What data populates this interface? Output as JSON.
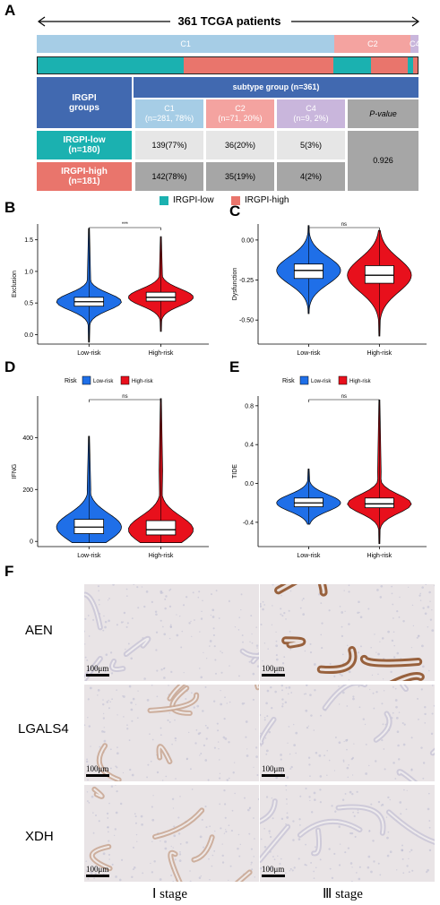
{
  "panel_labels": {
    "a": "A",
    "b": "B",
    "c": "C",
    "d": "D",
    "e": "E",
    "f": "F"
  },
  "panelA": {
    "cohort_label": "361 TCGA patients",
    "subtype_bar": [
      {
        "label": "C1",
        "fraction": 0.78,
        "color": "#a6cde6"
      },
      {
        "label": "C2",
        "fraction": 0.2,
        "color": "#f4a3a0"
      },
      {
        "label": "C4",
        "fraction": 0.02,
        "color": "#c9b6dc"
      }
    ],
    "risk_bar_segments": [
      {
        "group": "IRGPI-low",
        "fraction": 0.385,
        "color": "#1bb1b0"
      },
      {
        "group": "IRGPI-high",
        "fraction": 0.393,
        "color": "#e9756c"
      },
      {
        "group": "IRGPI-low",
        "fraction": 0.1,
        "color": "#1bb1b0"
      },
      {
        "group": "IRGPI-high",
        "fraction": 0.097,
        "color": "#e9756c"
      },
      {
        "group": "IRGPI-low",
        "fraction": 0.014,
        "color": "#1bb1b0"
      },
      {
        "group": "IRGPI-high",
        "fraction": 0.011,
        "color": "#e9756c"
      }
    ],
    "table": {
      "group_header": "IRGPI\ngroups",
      "subtype_header": "subtype group (n=361)",
      "col_headers": [
        "C1\n(n=281, 78%)",
        "C2\n(n=71, 20%)",
        "C4\n(n=9, 2%)",
        "P-value"
      ],
      "rows": [
        {
          "label": "IRGPI-low\n(n=180)",
          "cells": [
            "139(77%)",
            "36(20%)",
            "5(3%)"
          ]
        },
        {
          "label": "IRGPI-high\n(n=181)",
          "cells": [
            "142(78%)",
            "35(19%)",
            "4(2%)"
          ]
        }
      ],
      "p_value": "0.926"
    },
    "legend": [
      {
        "label": "IRGPI-low",
        "color": "#1bb1b0"
      },
      {
        "label": "IRGPI-high",
        "color": "#e9756c"
      }
    ]
  },
  "chart_data": [
    {
      "panel": "B",
      "type": "violin",
      "ylabel": "Exclusion",
      "categories": [
        "Low-risk",
        "High-risk"
      ],
      "ylim": [
        -0.15,
        1.75
      ],
      "yticks": [
        0.0,
        0.5,
        1.0,
        1.5
      ],
      "series": [
        {
          "category": "Low-risk",
          "color": "#1f6fe8",
          "min": -0.12,
          "q1": 0.45,
          "median": 0.52,
          "q3": 0.59,
          "max": 1.68
        },
        {
          "category": "High-risk",
          "color": "#e8101c",
          "min": 0.05,
          "q1": 0.53,
          "median": 0.59,
          "q3": 0.67,
          "max": 1.55
        }
      ],
      "significance": "***"
    },
    {
      "panel": "C",
      "type": "violin",
      "ylabel": "Dysfunction",
      "categories": [
        "Low-risk",
        "High-risk"
      ],
      "ylim": [
        -0.65,
        0.1
      ],
      "yticks": [
        0.0,
        -0.25,
        -0.5
      ],
      "series": [
        {
          "category": "Low-risk",
          "color": "#1f6fe8",
          "min": -0.46,
          "q1": -0.24,
          "median": -0.19,
          "q3": -0.15,
          "max": 0.09
        },
        {
          "category": "High-risk",
          "color": "#e8101c",
          "min": -0.6,
          "q1": -0.27,
          "median": -0.22,
          "q3": -0.16,
          "max": 0.06
        }
      ],
      "significance": "ns"
    },
    {
      "panel": "D",
      "type": "violin",
      "ylabel": "IFNG",
      "legend_title": "Risk",
      "legend": [
        "Low-risk",
        "High-risk"
      ],
      "categories": [
        "Low-risk",
        "High-risk"
      ],
      "ylim": [
        -20,
        560
      ],
      "yticks": [
        0,
        200,
        400
      ],
      "series": [
        {
          "category": "Low-risk",
          "color": "#1f6fe8",
          "min": -5,
          "q1": 30,
          "median": 55,
          "q3": 85,
          "max": 405
        },
        {
          "category": "High-risk",
          "color": "#e8101c",
          "min": -5,
          "q1": 25,
          "median": 45,
          "q3": 80,
          "max": 550
        }
      ],
      "significance": "ns"
    },
    {
      "panel": "E",
      "type": "violin",
      "ylabel": "TIDE",
      "legend_title": "Risk",
      "legend": [
        "Low-risk",
        "High-risk"
      ],
      "categories": [
        "Low-risk",
        "High-risk"
      ],
      "ylim": [
        -0.65,
        0.9
      ],
      "yticks": [
        0.8,
        0.4,
        0.0,
        -0.4
      ],
      "series": [
        {
          "category": "Low-risk",
          "color": "#1f6fe8",
          "min": -0.42,
          "q1": -0.24,
          "median": -0.2,
          "q3": -0.15,
          "max": 0.15
        },
        {
          "category": "High-risk",
          "color": "#e8101c",
          "min": -0.62,
          "q1": -0.25,
          "median": -0.21,
          "q3": -0.15,
          "max": 0.86
        }
      ],
      "significance": "ns"
    }
  ],
  "panelF": {
    "rows": [
      "AEN",
      "LGALS4",
      "XDH"
    ],
    "scale_label": "100μm",
    "columns": [
      "Ⅰ stage",
      "Ⅲ stage"
    ],
    "stain_intensity": [
      [
        0.15,
        0.9
      ],
      [
        0.55,
        0.1
      ],
      [
        0.35,
        0.15
      ]
    ]
  }
}
